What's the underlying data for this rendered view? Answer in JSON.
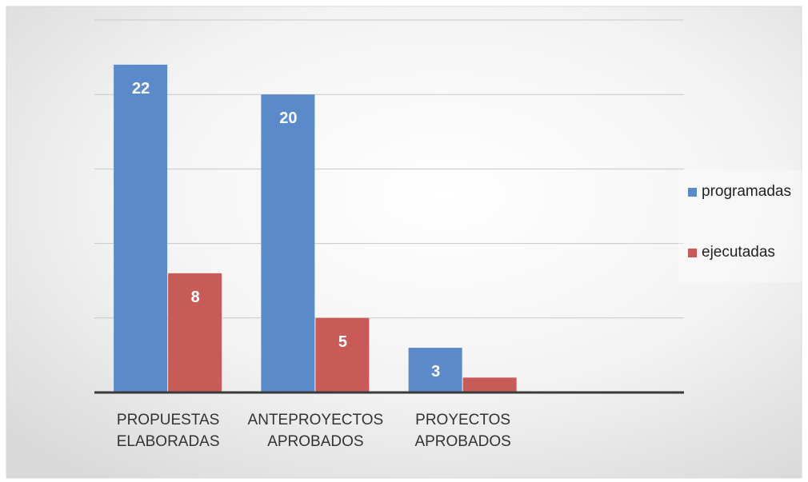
{
  "chart_data": {
    "type": "bar",
    "categories": [
      "PROPUESTAS ELABORADAS",
      "ANTEPROYECTOS APROBADOS",
      "PROYECTOS APROBADOS"
    ],
    "category_lines": [
      [
        "PROPUESTAS",
        "ELABORADAS"
      ],
      [
        "ANTEPROYECTOS",
        "APROBADOS"
      ],
      [
        "PROYECTOS",
        "APROBADOS"
      ]
    ],
    "series": [
      {
        "name": "programadas",
        "values": [
          22,
          20,
          3
        ],
        "color": "#5b8acb",
        "show_labels": [
          true,
          true,
          true
        ]
      },
      {
        "name": "ejecutadas",
        "values": [
          8,
          5,
          1
        ],
        "color": "#c85a57",
        "show_labels": [
          true,
          true,
          false
        ]
      }
    ],
    "title": "",
    "xlabel": "",
    "ylabel": "",
    "ylim": [
      0,
      25
    ],
    "grid": true,
    "legend_position": "right"
  }
}
